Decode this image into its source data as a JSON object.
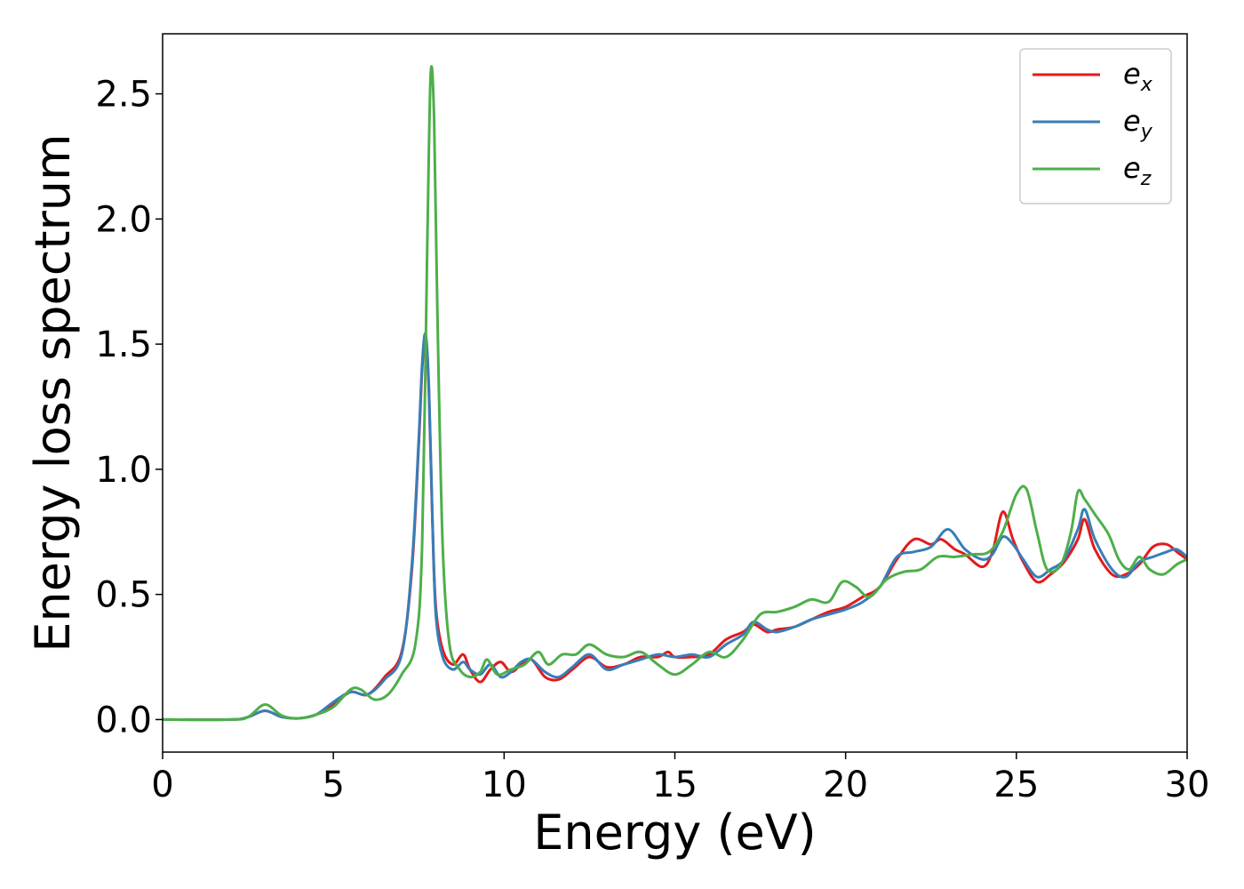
{
  "chart_data": {
    "type": "line",
    "title": "",
    "xlabel": "Energy (eV)",
    "ylabel": "Energy loss spectrum",
    "xlim": [
      0,
      30
    ],
    "ylim": [
      -0.13,
      2.74
    ],
    "xticks": [
      0,
      5,
      10,
      15,
      20,
      25,
      30
    ],
    "xtick_labels": [
      "0",
      "5",
      "10",
      "15",
      "20",
      "25",
      "30"
    ],
    "yticks": [
      0.0,
      0.5,
      1.0,
      1.5,
      2.0,
      2.5
    ],
    "ytick_labels": [
      "0.0",
      "0.5",
      "1.0",
      "1.5",
      "2.0",
      "2.5"
    ],
    "grid": false,
    "legend_position": "top-right",
    "series": [
      {
        "name": "e_x",
        "label_base": "e",
        "label_sub": "x",
        "color": "#e41a1c",
        "points": [
          [
            0,
            0.0
          ],
          [
            2.0,
            0.0
          ],
          [
            2.5,
            0.01
          ],
          [
            3.0,
            0.035
          ],
          [
            3.5,
            0.01
          ],
          [
            4.0,
            0.005
          ],
          [
            4.5,
            0.02
          ],
          [
            5.0,
            0.06
          ],
          [
            5.5,
            0.11
          ],
          [
            6.0,
            0.1
          ],
          [
            6.5,
            0.17
          ],
          [
            7.0,
            0.27
          ],
          [
            7.3,
            0.6
          ],
          [
            7.5,
            1.1
          ],
          [
            7.6,
            1.4
          ],
          [
            7.7,
            1.53
          ],
          [
            7.8,
            1.3
          ],
          [
            7.9,
            0.8
          ],
          [
            8.0,
            0.45
          ],
          [
            8.2,
            0.28
          ],
          [
            8.5,
            0.22
          ],
          [
            8.8,
            0.26
          ],
          [
            9.0,
            0.2
          ],
          [
            9.3,
            0.15
          ],
          [
            9.6,
            0.2
          ],
          [
            9.9,
            0.23
          ],
          [
            10.2,
            0.19
          ],
          [
            10.5,
            0.22
          ],
          [
            10.8,
            0.24
          ],
          [
            11.2,
            0.17
          ],
          [
            11.6,
            0.16
          ],
          [
            12.0,
            0.2
          ],
          [
            12.5,
            0.25
          ],
          [
            13.0,
            0.21
          ],
          [
            13.5,
            0.22
          ],
          [
            14.0,
            0.25
          ],
          [
            14.5,
            0.25
          ],
          [
            14.8,
            0.27
          ],
          [
            15.0,
            0.25
          ],
          [
            15.5,
            0.25
          ],
          [
            16.0,
            0.26
          ],
          [
            16.5,
            0.32
          ],
          [
            17.0,
            0.35
          ],
          [
            17.3,
            0.38
          ],
          [
            17.7,
            0.35
          ],
          [
            18.0,
            0.36
          ],
          [
            18.5,
            0.37
          ],
          [
            19.0,
            0.4
          ],
          [
            19.5,
            0.43
          ],
          [
            20.0,
            0.45
          ],
          [
            20.5,
            0.49
          ],
          [
            21.0,
            0.53
          ],
          [
            21.5,
            0.64
          ],
          [
            22.0,
            0.72
          ],
          [
            22.5,
            0.7
          ],
          [
            22.8,
            0.72
          ],
          [
            23.2,
            0.68
          ],
          [
            23.5,
            0.66
          ],
          [
            24.0,
            0.61
          ],
          [
            24.3,
            0.67
          ],
          [
            24.6,
            0.83
          ],
          [
            24.9,
            0.72
          ],
          [
            25.2,
            0.63
          ],
          [
            25.6,
            0.55
          ],
          [
            26.0,
            0.58
          ],
          [
            26.4,
            0.63
          ],
          [
            26.8,
            0.72
          ],
          [
            27.0,
            0.8
          ],
          [
            27.3,
            0.68
          ],
          [
            27.8,
            0.58
          ],
          [
            28.2,
            0.58
          ],
          [
            28.6,
            0.62
          ],
          [
            29.0,
            0.69
          ],
          [
            29.4,
            0.7
          ],
          [
            29.7,
            0.67
          ],
          [
            30.0,
            0.64
          ]
        ]
      },
      {
        "name": "e_y",
        "label_base": "e",
        "label_sub": "y",
        "color": "#377eb8",
        "points": [
          [
            0,
            0.0
          ],
          [
            2.0,
            0.0
          ],
          [
            2.5,
            0.01
          ],
          [
            3.0,
            0.035
          ],
          [
            3.5,
            0.01
          ],
          [
            4.0,
            0.005
          ],
          [
            4.5,
            0.02
          ],
          [
            5.0,
            0.07
          ],
          [
            5.5,
            0.11
          ],
          [
            6.0,
            0.1
          ],
          [
            6.5,
            0.16
          ],
          [
            7.0,
            0.26
          ],
          [
            7.3,
            0.62
          ],
          [
            7.5,
            1.12
          ],
          [
            7.6,
            1.42
          ],
          [
            7.7,
            1.54
          ],
          [
            7.8,
            1.32
          ],
          [
            7.9,
            0.8
          ],
          [
            8.0,
            0.42
          ],
          [
            8.2,
            0.25
          ],
          [
            8.5,
            0.2
          ],
          [
            8.8,
            0.23
          ],
          [
            9.0,
            0.2
          ],
          [
            9.3,
            0.18
          ],
          [
            9.6,
            0.22
          ],
          [
            9.9,
            0.17
          ],
          [
            10.2,
            0.19
          ],
          [
            10.5,
            0.23
          ],
          [
            10.8,
            0.24
          ],
          [
            11.2,
            0.19
          ],
          [
            11.6,
            0.17
          ],
          [
            12.0,
            0.21
          ],
          [
            12.5,
            0.26
          ],
          [
            13.0,
            0.2
          ],
          [
            13.5,
            0.22
          ],
          [
            14.0,
            0.24
          ],
          [
            14.5,
            0.26
          ],
          [
            15.0,
            0.25
          ],
          [
            15.5,
            0.26
          ],
          [
            16.0,
            0.25
          ],
          [
            16.5,
            0.3
          ],
          [
            17.0,
            0.34
          ],
          [
            17.3,
            0.39
          ],
          [
            17.7,
            0.36
          ],
          [
            18.0,
            0.35
          ],
          [
            18.5,
            0.37
          ],
          [
            19.0,
            0.4
          ],
          [
            19.5,
            0.42
          ],
          [
            20.0,
            0.44
          ],
          [
            20.5,
            0.47
          ],
          [
            21.0,
            0.53
          ],
          [
            21.5,
            0.65
          ],
          [
            22.0,
            0.67
          ],
          [
            22.5,
            0.69
          ],
          [
            23.0,
            0.76
          ],
          [
            23.5,
            0.68
          ],
          [
            24.0,
            0.64
          ],
          [
            24.3,
            0.66
          ],
          [
            24.6,
            0.73
          ],
          [
            24.9,
            0.7
          ],
          [
            25.2,
            0.64
          ],
          [
            25.6,
            0.57
          ],
          [
            26.0,
            0.6
          ],
          [
            26.4,
            0.64
          ],
          [
            26.8,
            0.76
          ],
          [
            27.0,
            0.84
          ],
          [
            27.3,
            0.72
          ],
          [
            27.8,
            0.6
          ],
          [
            28.2,
            0.57
          ],
          [
            28.6,
            0.63
          ],
          [
            29.0,
            0.65
          ],
          [
            29.4,
            0.67
          ],
          [
            29.7,
            0.68
          ],
          [
            30.0,
            0.65
          ]
        ]
      },
      {
        "name": "e_z",
        "label_base": "e",
        "label_sub": "z",
        "color": "#4daf4a",
        "points": [
          [
            0,
            0.0
          ],
          [
            2.0,
            0.0
          ],
          [
            2.5,
            0.01
          ],
          [
            3.0,
            0.06
          ],
          [
            3.5,
            0.015
          ],
          [
            4.0,
            0.005
          ],
          [
            4.5,
            0.02
          ],
          [
            5.0,
            0.05
          ],
          [
            5.5,
            0.12
          ],
          [
            5.8,
            0.12
          ],
          [
            6.2,
            0.08
          ],
          [
            6.6,
            0.1
          ],
          [
            7.0,
            0.18
          ],
          [
            7.4,
            0.3
          ],
          [
            7.6,
            0.7
          ],
          [
            7.75,
            1.9
          ],
          [
            7.85,
            2.58
          ],
          [
            7.95,
            2.4
          ],
          [
            8.05,
            1.6
          ],
          [
            8.2,
            0.7
          ],
          [
            8.4,
            0.3
          ],
          [
            8.7,
            0.2
          ],
          [
            9.0,
            0.17
          ],
          [
            9.3,
            0.19
          ],
          [
            9.5,
            0.24
          ],
          [
            9.8,
            0.18
          ],
          [
            10.2,
            0.2
          ],
          [
            10.6,
            0.22
          ],
          [
            11.0,
            0.27
          ],
          [
            11.3,
            0.22
          ],
          [
            11.7,
            0.26
          ],
          [
            12.1,
            0.26
          ],
          [
            12.5,
            0.3
          ],
          [
            13.0,
            0.26
          ],
          [
            13.5,
            0.25
          ],
          [
            14.0,
            0.27
          ],
          [
            14.5,
            0.22
          ],
          [
            15.0,
            0.18
          ],
          [
            15.5,
            0.22
          ],
          [
            16.0,
            0.27
          ],
          [
            16.5,
            0.25
          ],
          [
            17.0,
            0.32
          ],
          [
            17.5,
            0.42
          ],
          [
            18.0,
            0.43
          ],
          [
            18.5,
            0.45
          ],
          [
            19.0,
            0.48
          ],
          [
            19.5,
            0.47
          ],
          [
            19.9,
            0.55
          ],
          [
            20.3,
            0.53
          ],
          [
            20.7,
            0.49
          ],
          [
            21.2,
            0.56
          ],
          [
            21.7,
            0.59
          ],
          [
            22.2,
            0.6
          ],
          [
            22.7,
            0.65
          ],
          [
            23.2,
            0.65
          ],
          [
            23.7,
            0.66
          ],
          [
            24.2,
            0.67
          ],
          [
            24.6,
            0.75
          ],
          [
            25.0,
            0.9
          ],
          [
            25.3,
            0.92
          ],
          [
            25.6,
            0.75
          ],
          [
            25.9,
            0.6
          ],
          [
            26.3,
            0.62
          ],
          [
            26.6,
            0.75
          ],
          [
            26.8,
            0.91
          ],
          [
            27.0,
            0.88
          ],
          [
            27.3,
            0.82
          ],
          [
            27.7,
            0.74
          ],
          [
            28.0,
            0.64
          ],
          [
            28.3,
            0.6
          ],
          [
            28.6,
            0.65
          ],
          [
            28.9,
            0.6
          ],
          [
            29.3,
            0.58
          ],
          [
            29.7,
            0.62
          ],
          [
            30.0,
            0.64
          ]
        ]
      }
    ]
  }
}
